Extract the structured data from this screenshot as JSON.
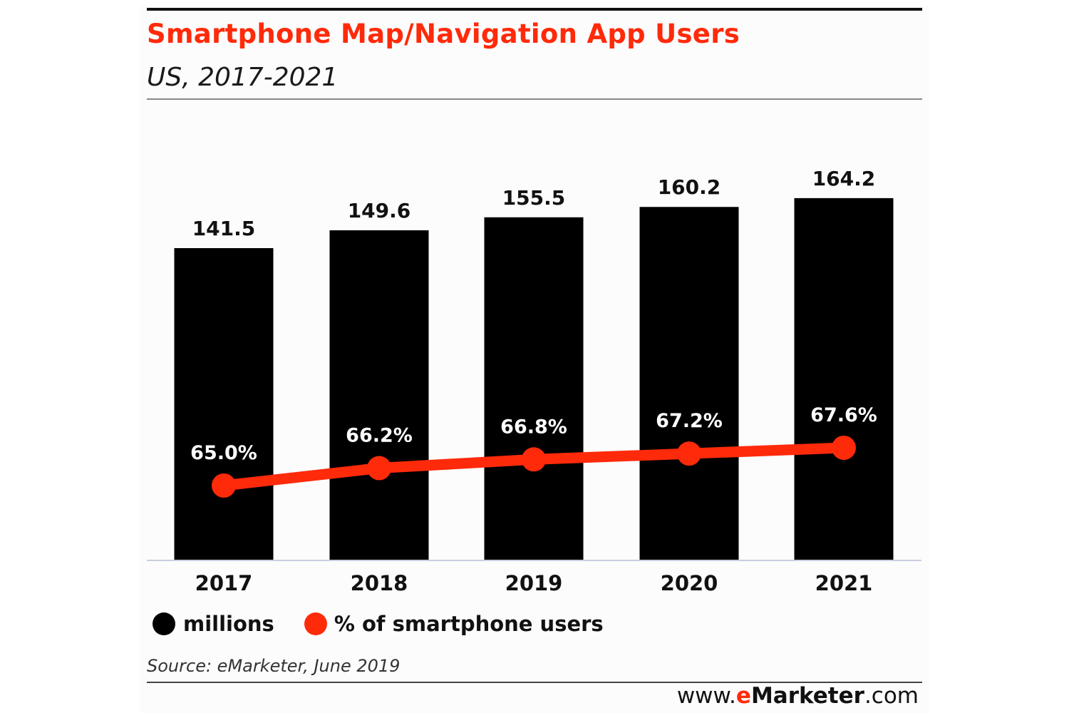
{
  "header": {
    "title": "Smartphone Map/Navigation App Users",
    "subtitle": "US, 2017-2021"
  },
  "colors": {
    "bars": "#000000",
    "line": "#ff2a0a",
    "title": "#ff2a0a"
  },
  "chart_data": {
    "type": "bar",
    "categories": [
      "2017",
      "2018",
      "2019",
      "2020",
      "2021"
    ],
    "series": [
      {
        "name": "millions",
        "type": "bar",
        "values": [
          141.5,
          149.6,
          155.5,
          160.2,
          164.2
        ],
        "labels": [
          "141.5",
          "149.6",
          "155.5",
          "160.2",
          "164.2"
        ]
      },
      {
        "name": "% of smartphone users",
        "type": "line",
        "values": [
          65.0,
          66.2,
          66.8,
          67.2,
          67.6
        ],
        "labels": [
          "65.0%",
          "66.2%",
          "66.8%",
          "67.2%",
          "67.6%"
        ]
      }
    ],
    "title": "Smartphone Map/Navigation App Users",
    "subtitle": "US, 2017-2021",
    "xlabel": "",
    "ylabel": "",
    "ylim_bars": [
      0,
      180
    ],
    "ylim_line": [
      50,
      74
    ],
    "grid": false,
    "legend": "bottom-left"
  },
  "legend": {
    "items": [
      {
        "label": "millions",
        "swatch": "black-dot"
      },
      {
        "label": "% of smartphone users",
        "swatch": "red-line-dot"
      }
    ]
  },
  "footer": {
    "source": "Source: eMarketer, June 2019",
    "url_prefix": "www.",
    "url_e": "e",
    "url_name": "Marketer",
    "url_suffix": ".com"
  }
}
